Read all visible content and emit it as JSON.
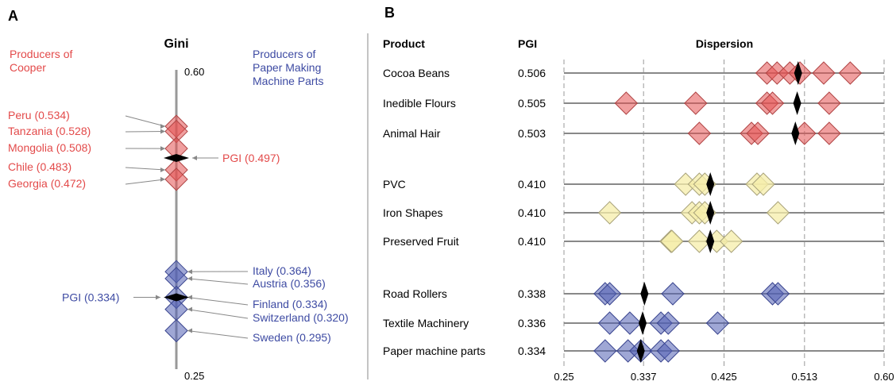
{
  "panelA": {
    "letter": "A",
    "axis_title": "Gini",
    "top_label": "0.60",
    "bottom_label": "0.25",
    "left_heading": [
      "Producers of",
      "Cooper"
    ],
    "right_heading": [
      "Producers of",
      "Paper Making",
      "Machine Parts"
    ],
    "colors": {
      "red": "#e34a4a",
      "blue": "#3e4ba3"
    }
  },
  "panelB": {
    "letter": "B",
    "col_product": "Product",
    "col_pgi": "PGI",
    "col_dispersion": "Dispersion",
    "tick_labels": [
      "0.25",
      "0.337",
      "0.425",
      "0.513",
      "0.60"
    ]
  },
  "chart_data": [
    {
      "type": "scatter",
      "panel": "A",
      "ylim": [
        0.25,
        0.6
      ],
      "title": "Gini",
      "red_points": [
        {
          "label": "Peru (0.534)",
          "value": 0.534
        },
        {
          "label": "Tanzania (0.528)",
          "value": 0.528
        },
        {
          "label": "Mongolia (0.508)",
          "value": 0.508
        },
        {
          "label": "Chile (0.483)",
          "value": 0.483
        },
        {
          "label": "Georgia (0.472)",
          "value": 0.472
        }
      ],
      "red_pgi": {
        "label": "PGI (0.497)",
        "value": 0.497
      },
      "blue_points": [
        {
          "label": "Italy (0.364)",
          "value": 0.364
        },
        {
          "label": "Austria (0.356)",
          "value": 0.356
        },
        {
          "label": "Finland (0.334)",
          "value": 0.334
        },
        {
          "label": "Switzerland (0.320)",
          "value": 0.32
        },
        {
          "label": "Sweden (0.295)",
          "value": 0.295
        }
      ],
      "blue_pgi": {
        "label": "PGI (0.334)",
        "value": 0.334
      }
    },
    {
      "type": "scatter",
      "panel": "B",
      "xlim": [
        0.25,
        0.6
      ],
      "rows": [
        {
          "product": "Cocoa Beans",
          "pgi": "0.506",
          "group": "red",
          "values": [
            0.472,
            0.483,
            0.497,
            0.508,
            0.534,
            0.563
          ]
        },
        {
          "product": "Inedible Flours",
          "pgi": "0.505",
          "group": "red",
          "values": [
            0.318,
            0.394,
            0.472,
            0.478,
            0.54
          ]
        },
        {
          "product": "Animal Hair",
          "pgi": "0.503",
          "group": "red",
          "values": [
            0.398,
            0.455,
            0.462,
            0.513,
            0.54
          ]
        },
        {
          "product": "PVC",
          "pgi": "0.410",
          "group": "yellow",
          "values": [
            0.383,
            0.398,
            0.404,
            0.461,
            0.468
          ]
        },
        {
          "product": "Iron Shapes",
          "pgi": "0.410",
          "group": "yellow",
          "values": [
            0.3,
            0.39,
            0.398,
            0.404,
            0.484
          ]
        },
        {
          "product": "Preserved Fruit",
          "pgi": "0.410",
          "group": "yellow",
          "values": [
            0.367,
            0.368,
            0.398,
            0.417,
            0.433
          ]
        },
        {
          "product": "Road Rollers",
          "pgi": "0.338",
          "group": "blue",
          "values": [
            0.295,
            0.3,
            0.369,
            0.478,
            0.484
          ]
        },
        {
          "product": "Textile Machinery",
          "pgi": "0.336",
          "group": "blue",
          "values": [
            0.3,
            0.322,
            0.356,
            0.364,
            0.418
          ]
        },
        {
          "product": "Paper machine parts",
          "pgi": "0.334",
          "group": "blue",
          "values": [
            0.295,
            0.32,
            0.334,
            0.356,
            0.364
          ]
        }
      ]
    }
  ]
}
